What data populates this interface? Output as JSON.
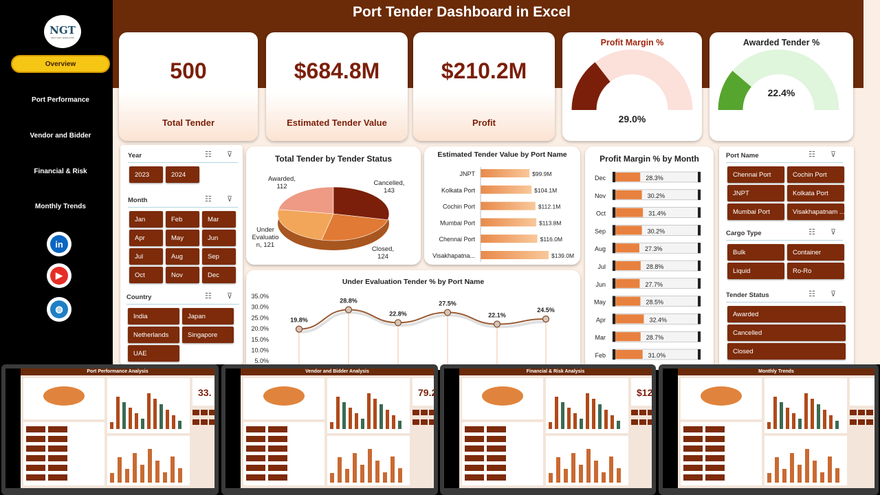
{
  "app": {
    "title": "Port Tender Dashboard in Excel",
    "logo": "NGT",
    "logo_sub": "NEXT GEN TEMPLATES"
  },
  "nav": [
    {
      "label": "Overview",
      "active": true
    },
    {
      "label": "Port Performance"
    },
    {
      "label": "Vendor and Bidder"
    },
    {
      "label": "Financial & Risk"
    },
    {
      "label": "Monthly Trends"
    }
  ],
  "social": [
    {
      "name": "linkedin-icon",
      "glyph": "in",
      "color": "#0a66c2"
    },
    {
      "name": "youtube-icon",
      "glyph": "▶",
      "color": "#e52d27"
    },
    {
      "name": "globe-icon",
      "glyph": "◍",
      "color": "#1f7fc4"
    }
  ],
  "kpis": [
    {
      "value": "500",
      "label": "Total Tender"
    },
    {
      "value": "$684.8M",
      "label": "Estimated Tender Value"
    },
    {
      "value": "$210.2M",
      "label": "Profit"
    }
  ],
  "gauges": [
    {
      "title": "Profit Margin %",
      "value_text": "29.0%",
      "fraction": 0.29,
      "fill": "#7b1f0a",
      "track": "#fce0da",
      "title_color": "#a0280f"
    },
    {
      "title": "Awarded Tender %",
      "value_text": "22.4%",
      "fraction": 0.224,
      "fill": "#56a52e",
      "track": "#dff5dc",
      "title_color": "#222"
    }
  ],
  "slicers": {
    "year": {
      "title": "Year",
      "items": [
        "2023",
        "2024"
      ]
    },
    "month": {
      "title": "Month",
      "items": [
        "Jan",
        "Feb",
        "Mar",
        "Apr",
        "May",
        "Jun",
        "Jul",
        "Aug",
        "Sep",
        "Oct",
        "Nov",
        "Dec"
      ]
    },
    "country": {
      "title": "Country",
      "items": [
        "India",
        "Japan",
        "Netherlands",
        "Singapore",
        "UAE"
      ]
    },
    "port": {
      "title": "Port Name",
      "items": [
        "Chennai Port",
        "Cochin Port",
        "JNPT",
        "Kolkata Port",
        "Mumbai Port",
        "Visakhapatnam ..."
      ]
    },
    "cargo": {
      "title": "Cargo Type",
      "items": [
        "Bulk",
        "Container",
        "Liquid",
        "Ro-Ro"
      ]
    },
    "status": {
      "title": "Tender Status",
      "items": [
        "Awarded",
        "Cancelled",
        "Closed"
      ]
    }
  },
  "charts": {
    "pie": {
      "title": "Total Tender by Tender Status",
      "labels": [
        {
          "text": "Awarded,\n112"
        },
        {
          "text": "Cancelled,\n143"
        },
        {
          "text": "Under\nEvaluatio\nn, 121"
        },
        {
          "text": "Closed,\n124"
        }
      ]
    },
    "bar": {
      "title": "Estimated Tender Value by Port Name"
    },
    "line": {
      "title": "Under Evaluation Tender % by Port Name"
    },
    "month": {
      "title": "Profit Margin % by Month"
    }
  },
  "chart_data": [
    {
      "type": "pie",
      "title": "Total Tender by Tender Status",
      "categories": [
        "Awarded",
        "Cancelled",
        "Closed",
        "Under Evaluation"
      ],
      "values": [
        112,
        143,
        124,
        121
      ],
      "colors": [
        "#ee9a85",
        "#7b1f0a",
        "#e07a35",
        "#f2a65a"
      ]
    },
    {
      "type": "bar",
      "title": "Estimated Tender Value by Port Name",
      "categories": [
        "JNPT",
        "Kolkata Port",
        "Cochin Port",
        "Mumbai Port",
        "Chennai Port",
        "Visakhapatna..."
      ],
      "values": [
        99.9,
        104.1,
        112.1,
        113.8,
        116.0,
        139.0
      ],
      "labels": [
        "$99.9M",
        "$104.1M",
        "$112.1M",
        "$113.8M",
        "$116.0M",
        "$139.0M"
      ],
      "xlim": [
        0,
        139
      ]
    },
    {
      "type": "line",
      "title": "Under Evaluation Tender % by Port Name",
      "values": [
        19.8,
        28.8,
        22.8,
        27.5,
        22.1,
        24.5
      ],
      "labels": [
        "19.8%",
        "28.8%",
        "22.8%",
        "27.5%",
        "22.1%",
        "24.5%"
      ],
      "yticks": [
        "35.0%",
        "30.0%",
        "25.0%",
        "20.0%",
        "15.0%",
        "10.0%",
        "5.0%"
      ],
      "ylim": [
        5,
        35
      ]
    },
    {
      "type": "bar",
      "title": "Profit Margin % by Month",
      "categories": [
        "Dec",
        "Nov",
        "Oct",
        "Sep",
        "Aug",
        "Jul",
        "Jun",
        "May",
        "Apr",
        "Mar",
        "Feb"
      ],
      "values": [
        28.3,
        30.2,
        31.4,
        30.2,
        27.3,
        28.8,
        27.7,
        28.5,
        32.4,
        28.7,
        31.0
      ],
      "labels": [
        "28.3%",
        "30.2%",
        "31.4%",
        "30.2%",
        "27.3%",
        "28.8%",
        "27.7%",
        "28.5%",
        "32.4%",
        "28.7%",
        "31.0%"
      ],
      "xlim": [
        0,
        100
      ]
    }
  ],
  "thumbnails": [
    {
      "title": "Port Performance Analysis",
      "kpi": "33."
    },
    {
      "title": "Vendor and Bidder Analysis",
      "kpi": "79.2"
    },
    {
      "title": "Financial & Risk Analysis",
      "kpi": "$12."
    },
    {
      "title": "Monthly Trends",
      "kpi": ""
    }
  ]
}
